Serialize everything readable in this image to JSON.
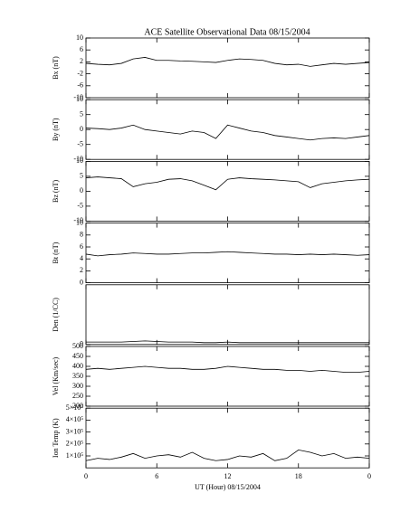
{
  "chart_data": [
    {
      "type": "line",
      "title": "ACE Satellite Observational Data   08/15/2004",
      "y_label": "Bx (nT)",
      "color": "#000000",
      "x": [
        0,
        1,
        2,
        3,
        4,
        5,
        6,
        7,
        8,
        9,
        10,
        11,
        12,
        13,
        14,
        15,
        16,
        17,
        18,
        19,
        20,
        21,
        22,
        23,
        24
      ],
      "values": [
        1.5,
        1.2,
        1,
        1.5,
        3,
        3.5,
        2.5,
        2.5,
        2.3,
        2.2,
        2,
        1.8,
        2.5,
        3,
        2.8,
        2.5,
        1.5,
        1,
        1.2,
        0.5,
        1,
        1.5,
        1.2,
        1.5,
        1.8
      ],
      "xlim": [
        0,
        24
      ],
      "ylim": [
        -10,
        10
      ],
      "yticks": [
        10,
        6,
        2,
        -2,
        -6,
        -10
      ]
    },
    {
      "type": "line",
      "y_label": "By (nT)",
      "color": "#000000",
      "x": [
        0,
        1,
        2,
        3,
        4,
        5,
        6,
        7,
        8,
        9,
        10,
        11,
        12,
        13,
        14,
        15,
        16,
        17,
        18,
        19,
        20,
        21,
        22,
        23,
        24
      ],
      "values": [
        0.5,
        0.3,
        0,
        0.5,
        1.5,
        0,
        -0.5,
        -1,
        -1.5,
        -0.5,
        -1,
        -3,
        1.5,
        0.5,
        -0.5,
        -1,
        -2,
        -2.5,
        -3,
        -3.5,
        -3,
        -2.8,
        -3,
        -2.5,
        -2
      ],
      "xlim": [
        0,
        24
      ],
      "ylim": [
        -10,
        10
      ],
      "yticks": [
        10,
        5,
        0,
        -5,
        -10
      ]
    },
    {
      "type": "line",
      "y_label": "Bz (nT)",
      "color": "#000000",
      "x": [
        0,
        1,
        2,
        3,
        4,
        5,
        6,
        7,
        8,
        9,
        10,
        11,
        12,
        13,
        14,
        15,
        16,
        17,
        18,
        19,
        20,
        21,
        22,
        23,
        24
      ],
      "values": [
        4.5,
        4.8,
        4.5,
        4.2,
        1.5,
        2.5,
        3,
        4,
        4.2,
        3.5,
        2,
        0.5,
        4,
        4.5,
        4.2,
        4,
        3.8,
        3.5,
        3.2,
        1.2,
        2.5,
        3,
        3.5,
        3.8,
        4
      ],
      "xlim": [
        0,
        24
      ],
      "ylim": [
        -10,
        10
      ],
      "yticks": [
        10,
        5,
        0,
        -5,
        -10
      ]
    },
    {
      "type": "line",
      "y_label": "Bt (nT)",
      "color": "#000000",
      "x": [
        0,
        1,
        2,
        3,
        4,
        5,
        6,
        7,
        8,
        9,
        10,
        11,
        12,
        13,
        14,
        15,
        16,
        17,
        18,
        19,
        20,
        21,
        22,
        23,
        24
      ],
      "values": [
        4.8,
        4.5,
        4.7,
        4.8,
        5,
        4.9,
        4.8,
        4.8,
        4.9,
        5,
        5,
        5.1,
        5.2,
        5.1,
        5,
        4.9,
        4.8,
        4.8,
        4.7,
        4.8,
        4.7,
        4.8,
        4.7,
        4.6,
        4.7
      ],
      "xlim": [
        0,
        24
      ],
      "ylim": [
        0,
        10
      ],
      "yticks": [
        10,
        8,
        6,
        4,
        2,
        0
      ]
    },
    {
      "type": "line",
      "y_label": "Den (1/CC)",
      "color": "#000000",
      "x": [
        0,
        1,
        2,
        3,
        4,
        5,
        6,
        7,
        8,
        9,
        10,
        11,
        12,
        13,
        14,
        15,
        16,
        17,
        18,
        19,
        20,
        21,
        22,
        23,
        24
      ],
      "values": [
        2,
        2,
        2,
        2,
        2.5,
        3,
        2.5,
        2,
        2,
        2,
        1.5,
        1.5,
        2,
        1.5,
        1.5,
        1.5,
        1.5,
        1.5,
        1.5,
        1.5,
        1.5,
        1.5,
        1.5,
        1.5,
        1.5
      ],
      "xlim": [
        0,
        24
      ],
      "ylim": [
        0,
        50
      ],
      "yticks": [
        0
      ]
    },
    {
      "type": "line",
      "y_label": "Vel (Km/sec)",
      "color": "#000000",
      "x": [
        0,
        1,
        2,
        3,
        4,
        5,
        6,
        7,
        8,
        9,
        10,
        11,
        12,
        13,
        14,
        15,
        16,
        17,
        18,
        19,
        20,
        21,
        22,
        23,
        24
      ],
      "values": [
        385,
        390,
        385,
        390,
        395,
        400,
        395,
        390,
        390,
        385,
        385,
        390,
        400,
        395,
        390,
        385,
        385,
        380,
        380,
        375,
        380,
        375,
        370,
        370,
        375
      ],
      "xlim": [
        0,
        24
      ],
      "ylim": [
        200,
        500
      ],
      "yticks": [
        500,
        450,
        400,
        350,
        300,
        250,
        200
      ]
    },
    {
      "type": "line",
      "y_label": "Ion Temp (K)",
      "x_label": "UT (Hour)  08/15/2004",
      "color": "#000000",
      "x": [
        0,
        1,
        2,
        3,
        4,
        5,
        6,
        7,
        8,
        9,
        10,
        11,
        12,
        13,
        14,
        15,
        16,
        17,
        18,
        19,
        20,
        21,
        22,
        23,
        24
      ],
      "values": [
        60000,
        80000,
        70000,
        90000,
        120000,
        80000,
        100000,
        110000,
        90000,
        130000,
        80000,
        60000,
        70000,
        100000,
        90000,
        120000,
        60000,
        80000,
        150000,
        130000,
        100000,
        120000,
        80000,
        90000,
        80000
      ],
      "xlim": [
        0,
        24
      ],
      "ylim": [
        0,
        500000
      ],
      "yticks": [
        {
          "value": 500000,
          "label": "5×10⁵"
        },
        {
          "value": 400000,
          "label": "4×10⁵"
        },
        {
          "value": 300000,
          "label": "3×10⁵"
        },
        {
          "value": 200000,
          "label": "2×10⁵"
        },
        {
          "value": 100000,
          "label": "1×10⁵"
        }
      ],
      "xticks": [
        0,
        6,
        12,
        18,
        {
          "value": 24,
          "label": "0"
        }
      ]
    }
  ]
}
